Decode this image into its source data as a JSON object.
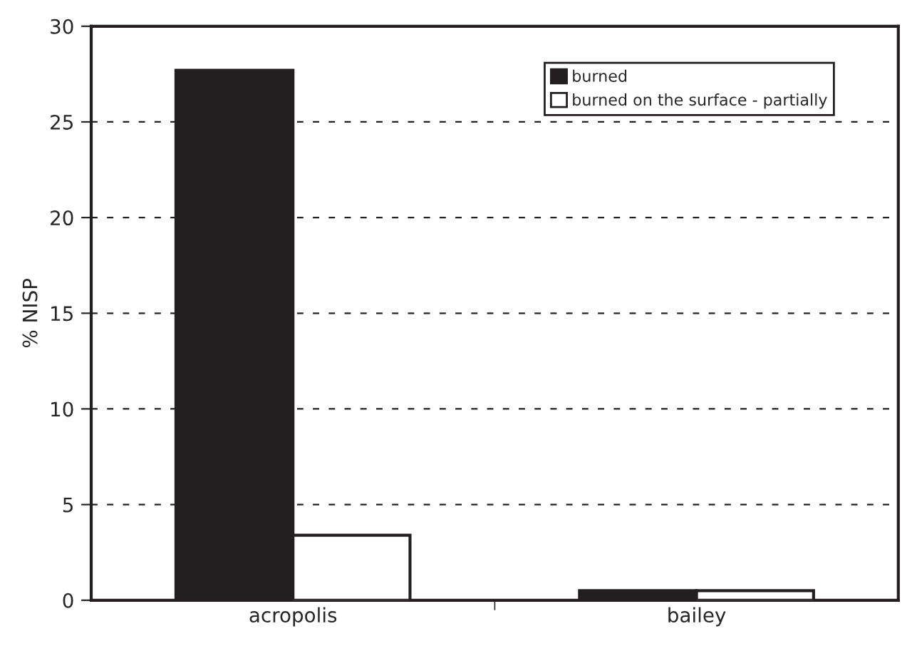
{
  "chart_data": {
    "type": "bar",
    "ylabel": "% NISP",
    "categories": [
      "acropolis",
      "bailey"
    ],
    "series": [
      {
        "name": "burned",
        "color": "#231f20",
        "values": [
          27.7,
          0.5
        ]
      },
      {
        "name": "burned on the surface - partially",
        "color": "#ffffff",
        "values": [
          3.4,
          0.5
        ]
      }
    ],
    "ylim": [
      0,
      30
    ],
    "yticks": [
      0,
      5,
      10,
      15,
      20,
      25,
      30
    ],
    "grid": "y",
    "legend": "top right"
  }
}
